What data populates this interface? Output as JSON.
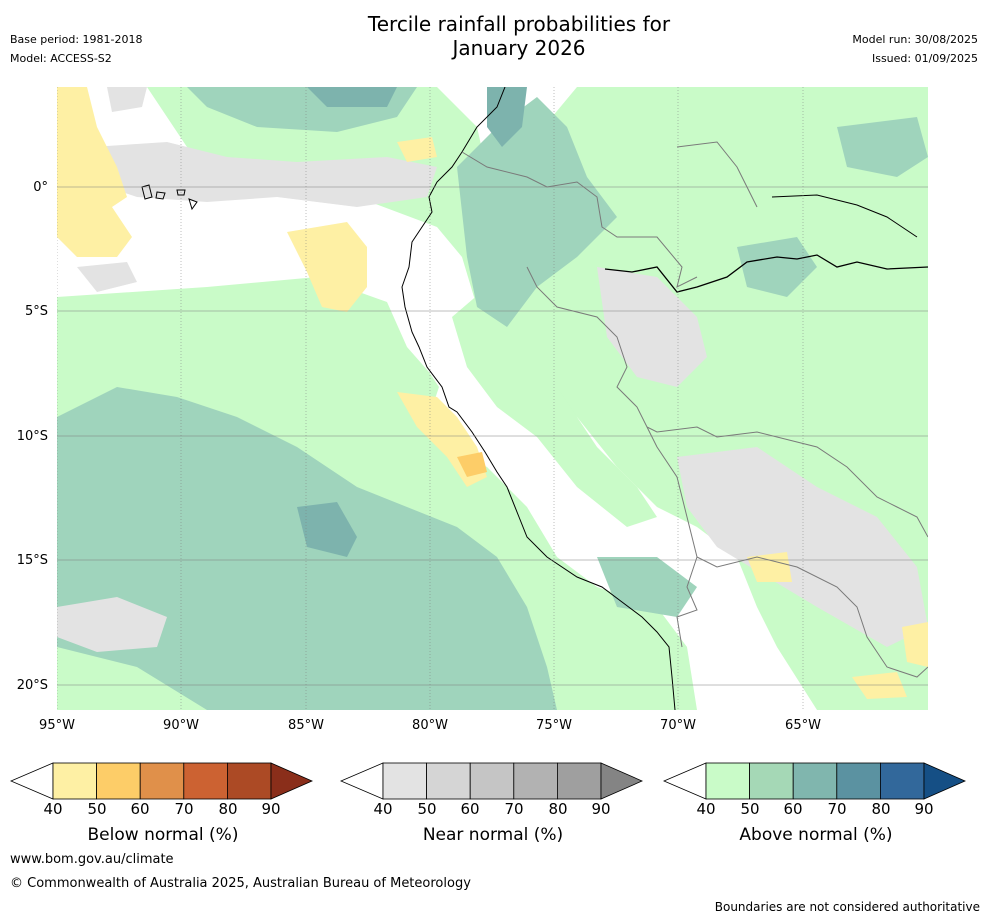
{
  "header": {
    "title_line1": "Tercile rainfall probabilities for",
    "title_line2": "January 2026",
    "base_period": "Base period: 1981-2018",
    "model": "Model: ACCESS-S2",
    "model_run": "Model run: 30/08/2025",
    "issued": "Issued: 01/09/2025"
  },
  "map": {
    "lat_labels": [
      "0°",
      "5°S",
      "10°S",
      "15°S",
      "20°S"
    ],
    "lon_labels": [
      "95°W",
      "90°W",
      "85°W",
      "80°W",
      "75°W",
      "70°W",
      "65°W"
    ],
    "colors": {
      "ocean_white": "#ffffff",
      "below_40": "#fef0a4",
      "below_50": "#fdcd68",
      "near_40": "#e3e3e3",
      "above_40": "#c9fbc8",
      "above_50": "#9fd4bc",
      "above_60": "#7db3ad",
      "above_70": "#5d95a2"
    }
  },
  "colorbars": [
    {
      "name": "below",
      "title": "Below normal (%)",
      "ticks": [
        "40",
        "50",
        "60",
        "70",
        "80",
        "90"
      ],
      "colors": [
        "#ffffff",
        "#fef0a4",
        "#fdcd68",
        "#e0904a",
        "#cc6232",
        "#ac4a25",
        "#8a2e1a"
      ]
    },
    {
      "name": "near",
      "title": "Near normal (%)",
      "ticks": [
        "40",
        "50",
        "60",
        "70",
        "80",
        "90"
      ],
      "colors": [
        "#ffffff",
        "#e3e3e3",
        "#d5d5d5",
        "#c5c5c5",
        "#b2b2b2",
        "#9f9f9f",
        "#848484"
      ]
    },
    {
      "name": "above",
      "title": "Above normal (%)",
      "ticks": [
        "40",
        "50",
        "60",
        "70",
        "80",
        "90"
      ],
      "colors": [
        "#ffffff",
        "#c9fbc8",
        "#a5d8b6",
        "#80b6ae",
        "#5b92a1",
        "#32689b",
        "#154f85"
      ]
    }
  ],
  "footer": {
    "website": "www.bom.gov.au/climate",
    "copyright": "© Commonwealth of Australia 2025, Australian Bureau of Meteorology",
    "disclaimer": "Boundaries are not considered authoritative"
  }
}
